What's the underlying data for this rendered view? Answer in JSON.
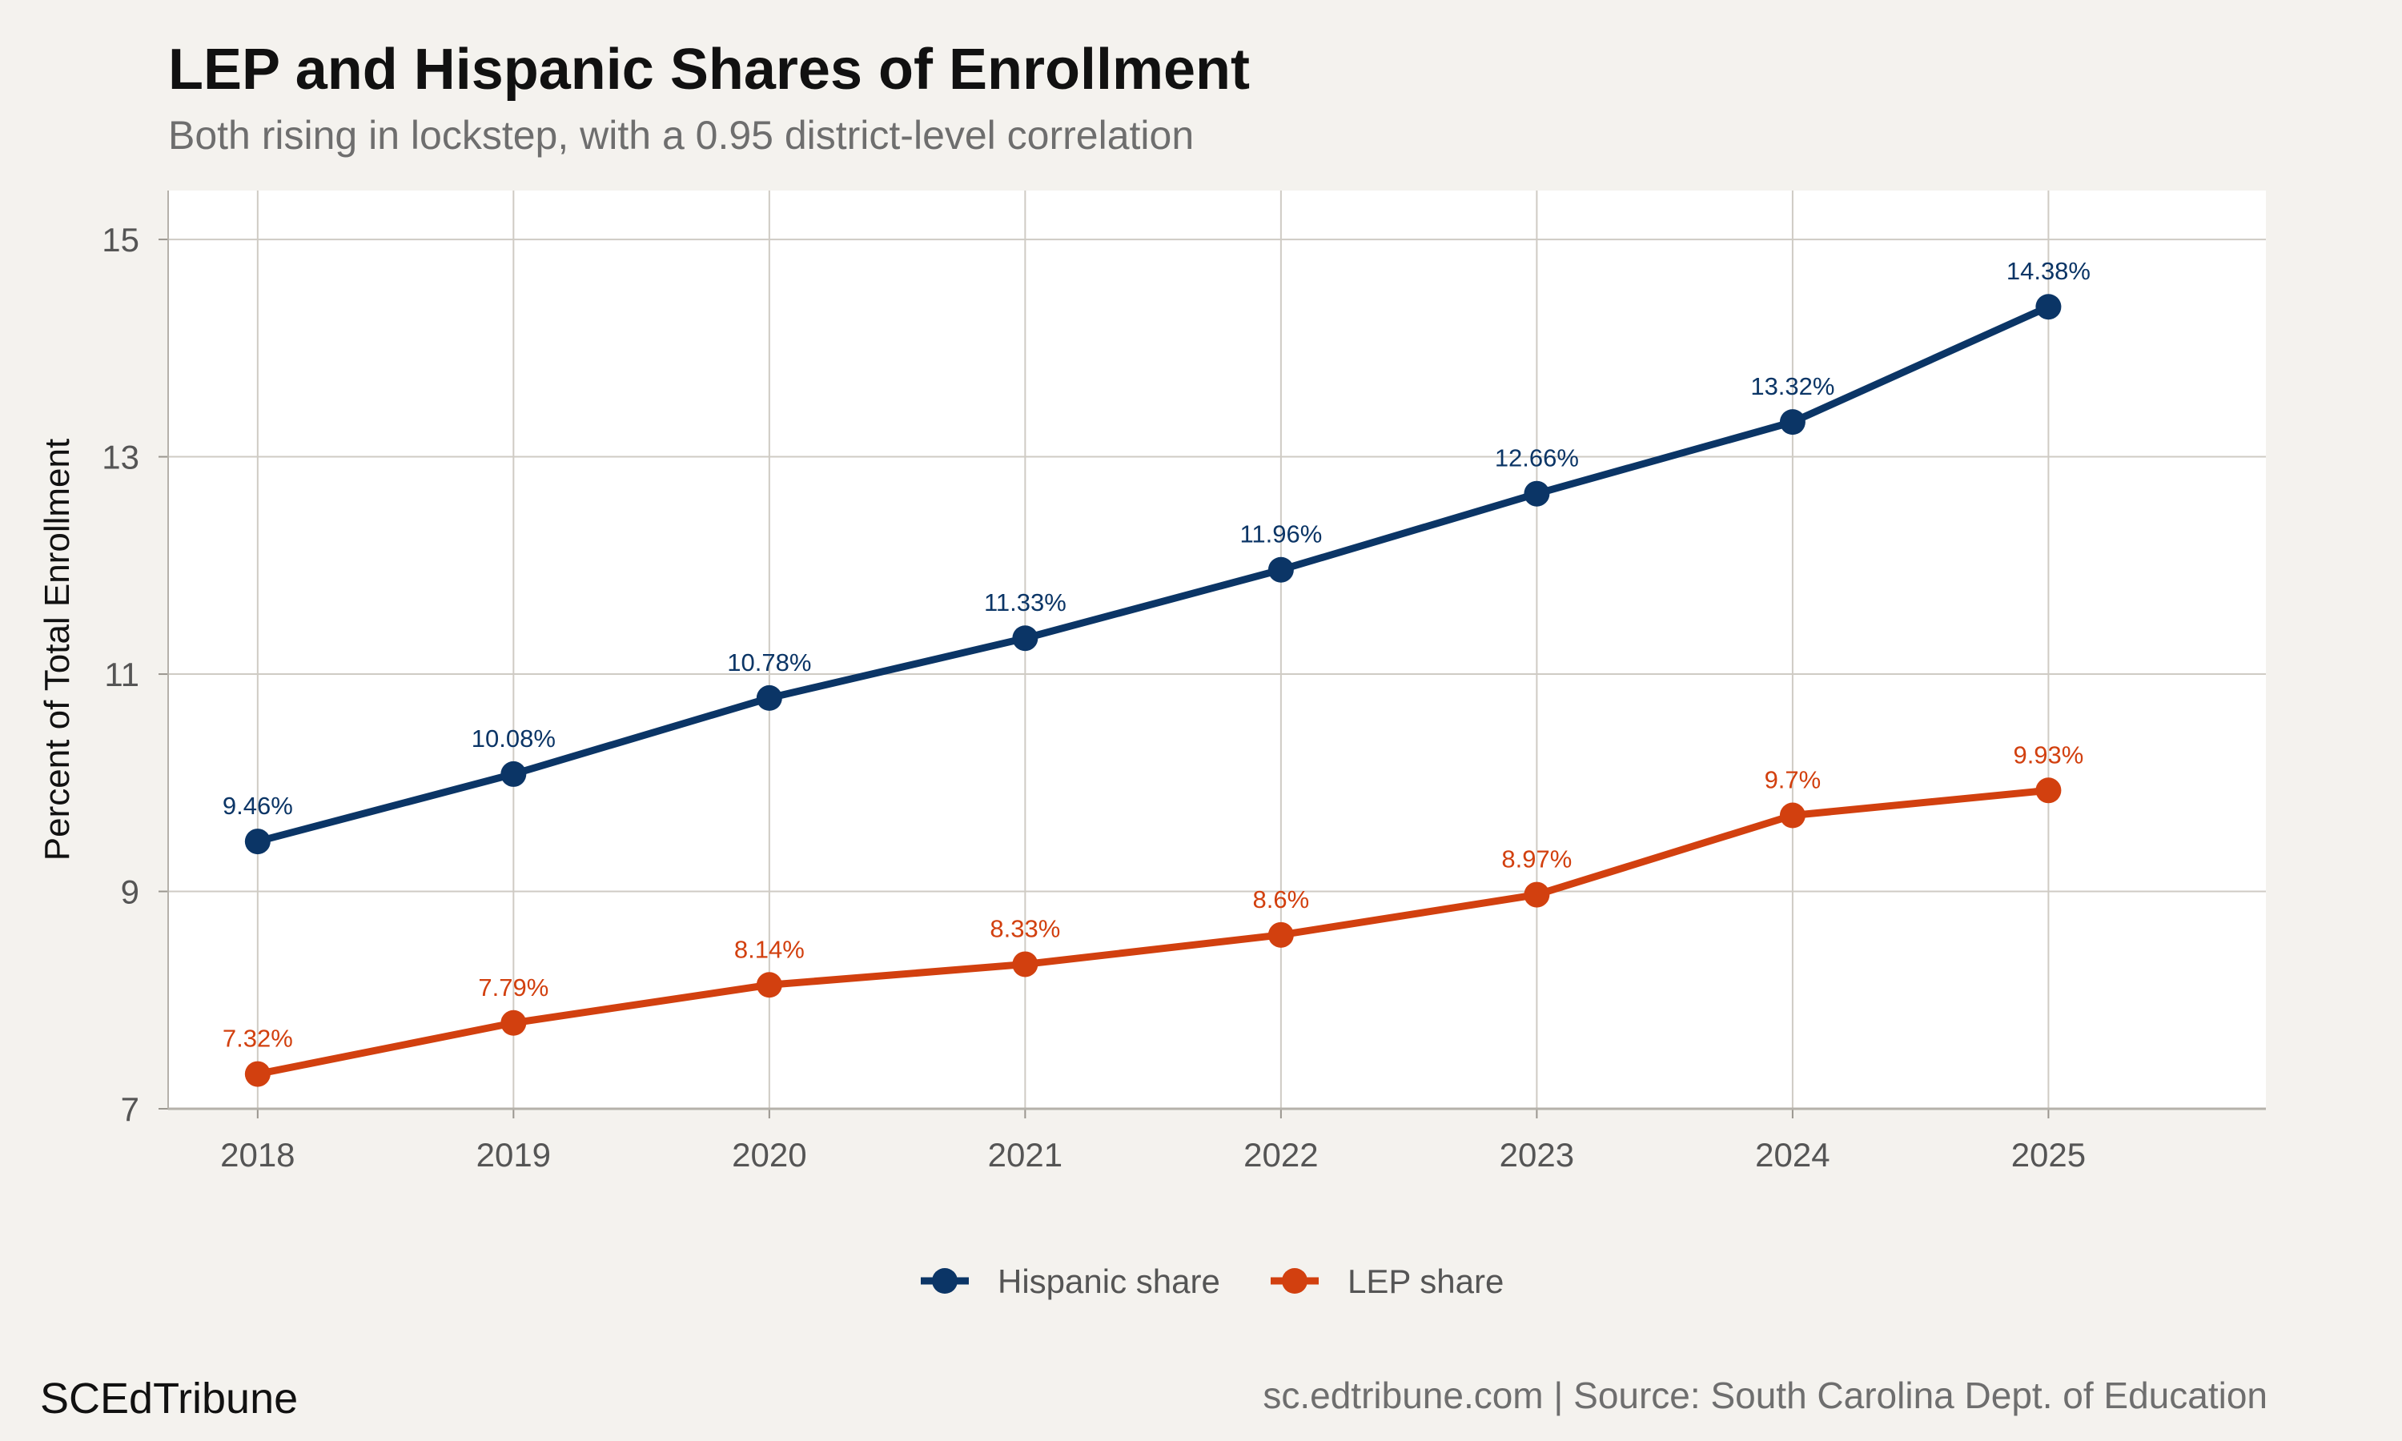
{
  "header": {
    "title": "LEP and Hispanic Shares of Enrollment",
    "subtitle": "Both rising in lockstep, with a 0.95 district-level correlation"
  },
  "footer": {
    "brand": "SCEdTribune",
    "source": "sc.edtribune.com | Source: South Carolina Dept. of Education"
  },
  "colors": {
    "hispanic": "#0b3566",
    "lep": "#d2400f",
    "grid": "#cfcbc4",
    "panel": "#ffffff",
    "background": "#f4f2ee"
  },
  "chart_data": {
    "type": "line",
    "title": "LEP and Hispanic Shares of Enrollment",
    "subtitle": "Both rising in lockstep, with a 0.95 district-level correlation",
    "xlabel": "",
    "ylabel": "Percent of Total Enrollment",
    "x": [
      2018,
      2019,
      2020,
      2021,
      2022,
      2023,
      2024,
      2025
    ],
    "x_tick_labels": [
      "2018",
      "2019",
      "2020",
      "2021",
      "2022",
      "2023",
      "2024",
      "2025"
    ],
    "yticks": [
      7,
      9,
      11,
      13,
      15
    ],
    "y_tick_labels": [
      "7",
      "9",
      "11",
      "13",
      "15"
    ],
    "ylim": [
      7,
      15.45
    ],
    "xlim": [
      2017.65,
      2025.85
    ],
    "grid": true,
    "legend_position": "bottom",
    "series": [
      {
        "name": "Hispanic share",
        "color": "#0b3566",
        "values": [
          9.46,
          10.08,
          10.78,
          11.33,
          11.96,
          12.66,
          13.32,
          14.38
        ],
        "labels": [
          "9.46%",
          "10.08%",
          "10.78%",
          "11.33%",
          "11.96%",
          "12.66%",
          "13.32%",
          "14.38%"
        ]
      },
      {
        "name": "LEP share",
        "color": "#d2400f",
        "values": [
          7.32,
          7.79,
          8.14,
          8.33,
          8.6,
          8.97,
          9.7,
          9.93
        ],
        "labels": [
          "7.32%",
          "7.79%",
          "8.14%",
          "8.33%",
          "8.6%",
          "8.97%",
          "9.7%",
          "9.93%"
        ]
      }
    ]
  }
}
